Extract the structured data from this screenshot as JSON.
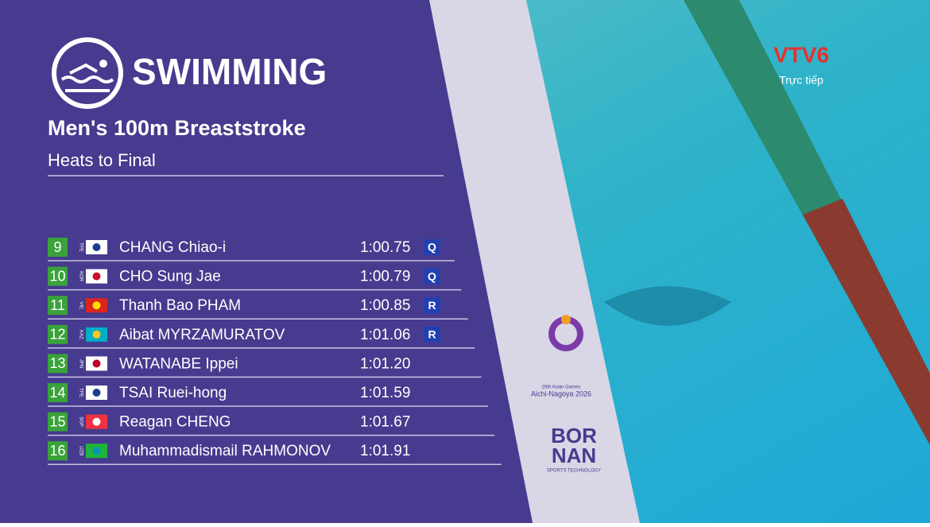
{
  "header": {
    "sport": "SWIMMING",
    "event": "Men's 100m Breaststroke",
    "round": "Heats to Final"
  },
  "table": {
    "rows": [
      {
        "rank": 9,
        "country": "TPE",
        "name": "CHANG Chiao-i",
        "time": "1:00.75",
        "qualifier": "Q"
      },
      {
        "rank": 10,
        "country": "KOR",
        "name": "CHO Sung Jae",
        "time": "1:00.79",
        "qualifier": "Q"
      },
      {
        "rank": 11,
        "country": "VIE",
        "name": "Thanh Bao PHAM",
        "time": "1:00.85",
        "qualifier": "R"
      },
      {
        "rank": 12,
        "country": "KAZ",
        "name": "Aibat MYRZAMURATOV",
        "time": "1:01.06",
        "qualifier": "R"
      },
      {
        "rank": 13,
        "country": "JPN",
        "name": "WATANABE Ippei",
        "time": "1:01.20"
      },
      {
        "rank": 14,
        "country": "TPE",
        "name": "TSAI Ruei-hong",
        "time": "1:01.59"
      },
      {
        "rank": 15,
        "country": "SGP",
        "name": "Reagan CHENG",
        "time": "1:01.67"
      },
      {
        "rank": 16,
        "country": "UZB",
        "name": "Muhammadismail RAHMONOV",
        "time": "1:01.91"
      }
    ]
  },
  "logos": {
    "channel": "VTV6",
    "live": "Trực tiếp",
    "games_edition": "20th Asian Games",
    "games_name": "Aichi-Nagoya 2026",
    "sponsor_top": "BOR",
    "sponsor_bottom": "NAN",
    "sponsor_tagline": "SPORTS TECHNOLOGY"
  }
}
